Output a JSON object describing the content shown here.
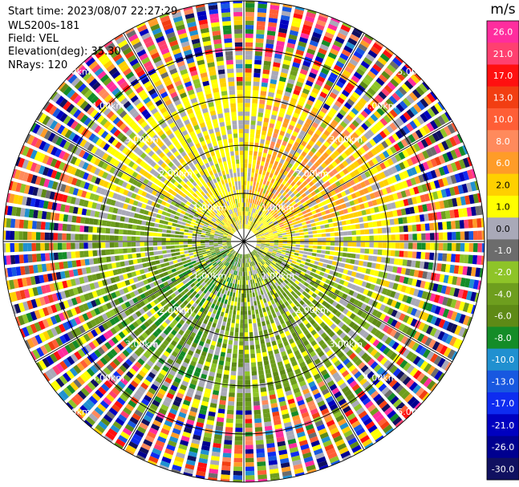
{
  "header": {
    "start_time": "Start time: 2023/08/07 22:27:29",
    "instrument": "WLS200s-181",
    "field": "Field: VEL",
    "elevation": "Elevation(deg): 35.30",
    "nrays": "NRays: 120"
  },
  "ring_labels": [
    "1.00km",
    "2.00km",
    "3.00km",
    "4.00km",
    "5.00km"
  ],
  "colorbar": {
    "unit": "m/s",
    "ticks": [
      "26.0",
      "21.0",
      "17.0",
      "13.0",
      "10.0",
      "8.0",
      "6.0",
      "2.0",
      "1.0",
      "0.0",
      "-1.0",
      "-2.0",
      "-4.0",
      "-6.0",
      "-8.0",
      "-10.0",
      "-13.0",
      "-17.0",
      "-21.0",
      "-26.0",
      "-30.0"
    ],
    "colors": [
      "#ff2d9e",
      "#ff4070",
      "#ff1010",
      "#f23e12",
      "#ff5e36",
      "#ff8a5c",
      "#ff9c28",
      "#ffd000",
      "#ffff00",
      "#a9a9b8",
      "#6c6c6c",
      "#8ec428",
      "#6e9e1e",
      "#5e8a16",
      "#148c28",
      "#2090d0",
      "#1858e0",
      "#0e2cf0",
      "#0000c0",
      "#000090",
      "#101060"
    ]
  },
  "ppi": {
    "max_range_km": 5.0,
    "rays": 120
  }
}
